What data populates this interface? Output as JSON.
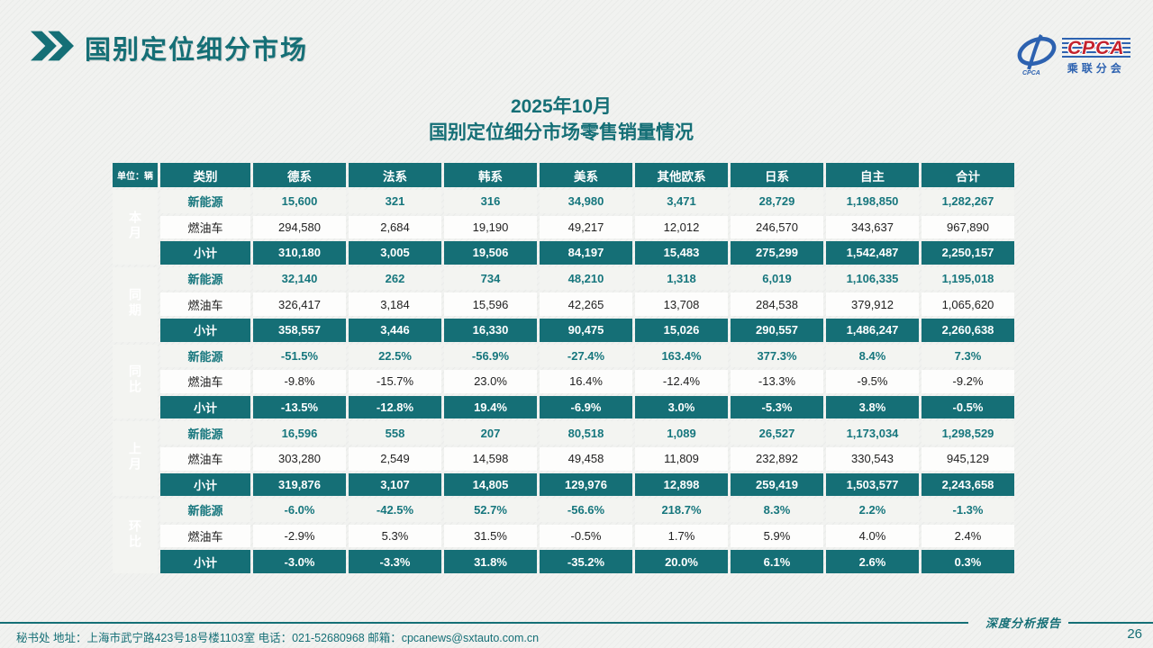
{
  "header": {
    "title": "国别定位细分市场"
  },
  "logo": {
    "acronym": "CPCA",
    "subtext": "乘联分会",
    "emblem_text": "CPCA"
  },
  "subtitle": {
    "line1": "2025年10月",
    "line2": "国别定位细分市场零售销量情况"
  },
  "colors": {
    "teal": "#156f76",
    "logo_blue": "#2d62b0",
    "logo_red": "#c4232e",
    "background": "#f1f2f0"
  },
  "table": {
    "unit_label": "单位：辆",
    "category_header": "类别",
    "columns": [
      "德系",
      "法系",
      "韩系",
      "美系",
      "其他欧系",
      "日系",
      "自主",
      "合计"
    ],
    "groups": [
      {
        "label": "本月",
        "rows": [
          {
            "category": "新能源",
            "style": "nev",
            "cells": [
              "15,600",
              "321",
              "316",
              "34,980",
              "3,471",
              "28,729",
              "1,198,850",
              "1,282,267"
            ]
          },
          {
            "category": "燃油车",
            "style": "ice",
            "cells": [
              "294,580",
              "2,684",
              "19,190",
              "49,217",
              "12,012",
              "246,570",
              "343,637",
              "967,890"
            ]
          },
          {
            "category": "小计",
            "style": "sub",
            "cells": [
              "310,180",
              "3,005",
              "19,506",
              "84,197",
              "15,483",
              "275,299",
              "1,542,487",
              "2,250,157"
            ]
          }
        ]
      },
      {
        "label": "同期",
        "rows": [
          {
            "category": "新能源",
            "style": "nev",
            "cells": [
              "32,140",
              "262",
              "734",
              "48,210",
              "1,318",
              "6,019",
              "1,106,335",
              "1,195,018"
            ]
          },
          {
            "category": "燃油车",
            "style": "ice",
            "cells": [
              "326,417",
              "3,184",
              "15,596",
              "42,265",
              "13,708",
              "284,538",
              "379,912",
              "1,065,620"
            ]
          },
          {
            "category": "小计",
            "style": "sub",
            "cells": [
              "358,557",
              "3,446",
              "16,330",
              "90,475",
              "15,026",
              "290,557",
              "1,486,247",
              "2,260,638"
            ]
          }
        ]
      },
      {
        "label": "同比",
        "rows": [
          {
            "category": "新能源",
            "style": "nev",
            "cells": [
              "-51.5%",
              "22.5%",
              "-56.9%",
              "-27.4%",
              "163.4%",
              "377.3%",
              "8.4%",
              "7.3%"
            ]
          },
          {
            "category": "燃油车",
            "style": "ice",
            "cells": [
              "-9.8%",
              "-15.7%",
              "23.0%",
              "16.4%",
              "-12.4%",
              "-13.3%",
              "-9.5%",
              "-9.2%"
            ]
          },
          {
            "category": "小计",
            "style": "sub",
            "cells": [
              "-13.5%",
              "-12.8%",
              "19.4%",
              "-6.9%",
              "3.0%",
              "-5.3%",
              "3.8%",
              "-0.5%"
            ]
          }
        ]
      },
      {
        "label": "上月",
        "rows": [
          {
            "category": "新能源",
            "style": "nev",
            "cells": [
              "16,596",
              "558",
              "207",
              "80,518",
              "1,089",
              "26,527",
              "1,173,034",
              "1,298,529"
            ]
          },
          {
            "category": "燃油车",
            "style": "ice",
            "cells": [
              "303,280",
              "2,549",
              "14,598",
              "49,458",
              "11,809",
              "232,892",
              "330,543",
              "945,129"
            ]
          },
          {
            "category": "小计",
            "style": "sub",
            "cells": [
              "319,876",
              "3,107",
              "14,805",
              "129,976",
              "12,898",
              "259,419",
              "1,503,577",
              "2,243,658"
            ]
          }
        ]
      },
      {
        "label": "环比",
        "rows": [
          {
            "category": "新能源",
            "style": "nev",
            "cells": [
              "-6.0%",
              "-42.5%",
              "52.7%",
              "-56.6%",
              "218.7%",
              "8.3%",
              "2.2%",
              "-1.3%"
            ]
          },
          {
            "category": "燃油车",
            "style": "ice",
            "cells": [
              "-2.9%",
              "5.3%",
              "31.5%",
              "-0.5%",
              "1.7%",
              "5.9%",
              "4.0%",
              "2.4%"
            ]
          },
          {
            "category": "小计",
            "style": "sub",
            "cells": [
              "-3.0%",
              "-3.3%",
              "31.8%",
              "-35.2%",
              "20.0%",
              "6.1%",
              "2.6%",
              "0.3%"
            ]
          }
        ]
      }
    ]
  },
  "footer": {
    "left": "秘书处   地址：上海市武宁路423号18号楼1103室 电话：021-52680968   邮箱：cpcanews@sxtauto.com.cn",
    "report_label": "深度分析报告",
    "page_number": "26"
  }
}
